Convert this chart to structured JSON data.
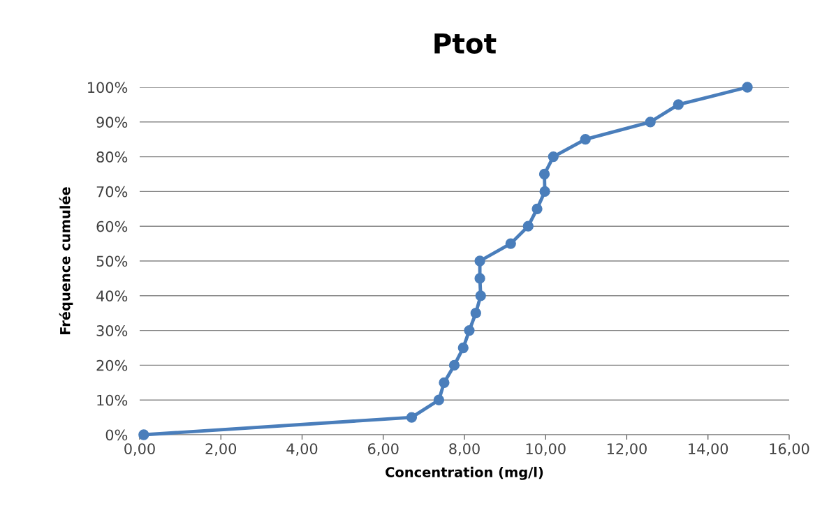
{
  "chart_data": {
    "type": "line",
    "title": "Ptot",
    "xlabel": "Concentration (mg/l)",
    "ylabel": "Fréquence cumulée",
    "series": [
      {
        "color": "#4a7ebb",
        "x": [
          0.1,
          6.7,
          7.37,
          7.5,
          7.75,
          7.97,
          8.12,
          8.28,
          8.4,
          8.38,
          8.38,
          9.14,
          9.57,
          9.79,
          9.98,
          9.97,
          10.19,
          10.98,
          12.58,
          13.27,
          14.97
        ],
        "values": [
          0,
          5,
          10,
          15,
          20,
          25,
          30,
          35,
          40,
          45,
          50,
          55,
          60,
          65,
          70,
          75,
          80,
          85,
          90,
          95,
          100
        ]
      }
    ],
    "xlim": [
      0,
      16
    ],
    "xticks": [
      {
        "value": 0,
        "label": "0,00"
      },
      {
        "value": 2,
        "label": "2,00"
      },
      {
        "value": 4,
        "label": "4,00"
      },
      {
        "value": 6,
        "label": "6,00"
      },
      {
        "value": 8,
        "label": "8,00"
      },
      {
        "value": 10,
        "label": "10,00"
      },
      {
        "value": 12,
        "label": "12,00"
      },
      {
        "value": 14,
        "label": "14,00"
      },
      {
        "value": 16,
        "label": "16,00"
      }
    ],
    "ylim": [
      0,
      100
    ],
    "yticks": [
      {
        "value": 0,
        "label": "0%"
      },
      {
        "value": 10,
        "label": "10%"
      },
      {
        "value": 20,
        "label": "20%"
      },
      {
        "value": 30,
        "label": "30%"
      },
      {
        "value": 40,
        "label": "40%"
      },
      {
        "value": 50,
        "label": "50%"
      },
      {
        "value": 60,
        "label": "60%"
      },
      {
        "value": 70,
        "label": "70%"
      },
      {
        "value": 80,
        "label": "80%"
      },
      {
        "value": 90,
        "label": "90%"
      },
      {
        "value": 100,
        "label": "100%"
      }
    ],
    "grid": "y",
    "marker": "circle",
    "line_style": "solid"
  }
}
